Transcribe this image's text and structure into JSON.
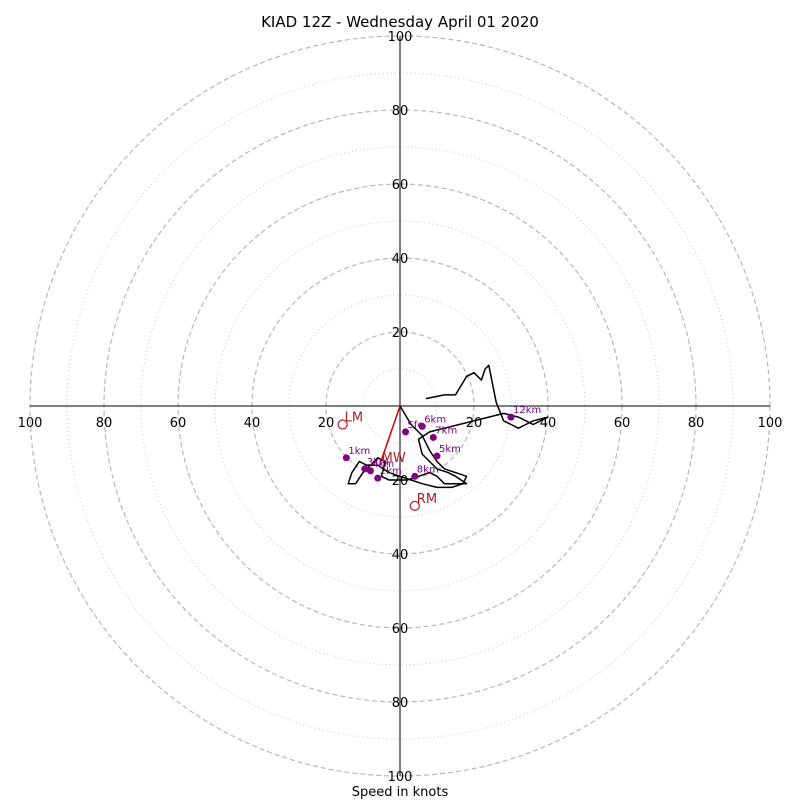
{
  "chart_data": {
    "type": "line",
    "title": "KIAD 12Z - Wednesday April 01 2020",
    "xlabel": "Speed in knots",
    "range": [
      -100,
      100
    ],
    "rings_major": [
      20,
      40,
      60,
      80,
      100
    ],
    "rings_minor": [
      10,
      30,
      50,
      70,
      90
    ],
    "tick_labels": {
      "x": [
        "100",
        "80",
        "60",
        "40",
        "20",
        "20",
        "40",
        "60",
        "80",
        "100"
      ],
      "y": [
        "100",
        "80",
        "60",
        "40",
        "20",
        "20",
        "40",
        "60",
        "80",
        "100"
      ]
    },
    "tick_values": {
      "x": [
        -100,
        -80,
        -60,
        -40,
        -20,
        20,
        40,
        60,
        80,
        100
      ],
      "y": [
        100,
        80,
        60,
        40,
        20,
        -20,
        -40,
        -60,
        -80,
        -100
      ]
    },
    "hodograph": {
      "color": "#000000",
      "u": [
        0,
        3,
        6,
        8,
        10,
        12,
        15,
        18,
        17,
        14,
        10,
        6,
        3,
        0,
        -3,
        -6,
        -9,
        -11,
        -13,
        -14,
        -12,
        -10,
        -8,
        -6,
        -4,
        -5,
        -3,
        -1,
        2,
        5,
        8,
        10,
        12,
        15,
        18,
        15,
        13,
        10,
        8,
        6,
        5,
        8,
        12,
        16,
        20,
        24,
        28,
        32,
        36,
        40,
        36,
        34,
        32,
        30,
        28,
        26,
        24,
        23,
        22,
        20,
        18,
        15,
        12,
        7
      ],
      "v": [
        0,
        -5,
        -8,
        -12,
        -15,
        -17,
        -18,
        -19,
        -21,
        -22,
        -22,
        -21,
        -20,
        -19,
        -18,
        -16,
        -16,
        -15,
        -18,
        -21,
        -21,
        -18,
        -16,
        -14,
        -15,
        -19,
        -20,
        -20,
        -20,
        -19,
        -18,
        -19,
        -21,
        -21,
        -21,
        -19,
        -18,
        -17,
        -15,
        -13,
        -9,
        -7,
        -6,
        -5,
        -4,
        -3,
        -2,
        -3,
        -5,
        -3,
        -4,
        -5,
        -6,
        -5,
        -4,
        1,
        11,
        10,
        7,
        9,
        8,
        3,
        3,
        2
      ]
    },
    "height_markers": {
      "color": "#800080",
      "points": [
        {
          "label": "1km",
          "u": -14.5,
          "v": -14
        },
        {
          "label": "2km",
          "u": -6,
          "v": -19.5
        },
        {
          "label": "3km",
          "u": -9.5,
          "v": -17
        },
        {
          "label": "4km",
          "u": -8,
          "v": -17.5
        },
        {
          "label": "5km",
          "u": 10,
          "v": -13.5
        },
        {
          "label": "6km",
          "u": 6,
          "v": -5.5
        },
        {
          "label": "7km",
          "u": 9,
          "v": -8.5
        },
        {
          "label": "8km",
          "u": 4,
          "v": -19
        },
        {
          "label": "12km",
          "u": 30,
          "v": -3
        },
        {
          "label": "Sfc",
          "u": 1.5,
          "v": -7
        }
      ]
    },
    "storm_motion": {
      "color": "#b22222",
      "points": [
        {
          "label": "LM",
          "u": -15.5,
          "v": -5
        },
        {
          "label": "RM",
          "u": 4,
          "v": -27
        },
        {
          "label": "MW",
          "u": -5.5,
          "v": -16
        }
      ]
    },
    "mean_wind_vector": {
      "color": "#dd0000",
      "u": -5.5,
      "v": -16
    },
    "grid": true,
    "legend": "none"
  }
}
